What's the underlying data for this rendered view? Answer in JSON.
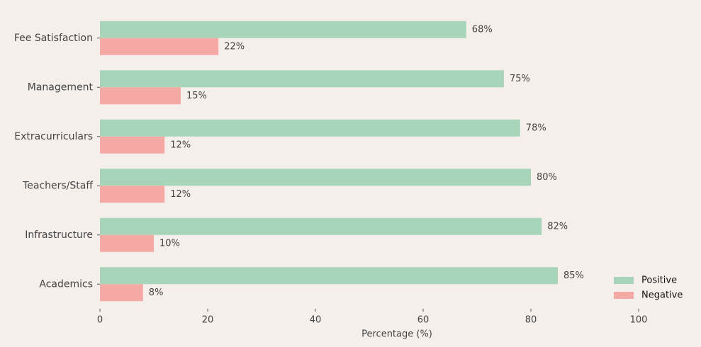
{
  "chart_data": {
    "type": "hbar",
    "categories": [
      "Fee Satisfaction",
      "Management",
      "Extracurriculars",
      "Teachers/Staff",
      "Infrastructure",
      "Academics"
    ],
    "series": [
      {
        "name": "Positive",
        "color": "#a8d5ba",
        "values": [
          68,
          75,
          78,
          80,
          82,
          85
        ],
        "value_labels": [
          "68%",
          "75%",
          "78%",
          "80%",
          "82%",
          "85%"
        ]
      },
      {
        "name": "Negative",
        "color": "#f5a9a5",
        "values": [
          22,
          15,
          12,
          12,
          10,
          8
        ],
        "value_labels": [
          "22%",
          "15%",
          "12%",
          "12%",
          "10%",
          "8%"
        ]
      }
    ],
    "x_label": "Percentage (%)",
    "xlim": [
      0,
      110
    ],
    "xticks": [
      0,
      20,
      40,
      60,
      80,
      100
    ],
    "grid": false,
    "legend": "lower right"
  }
}
